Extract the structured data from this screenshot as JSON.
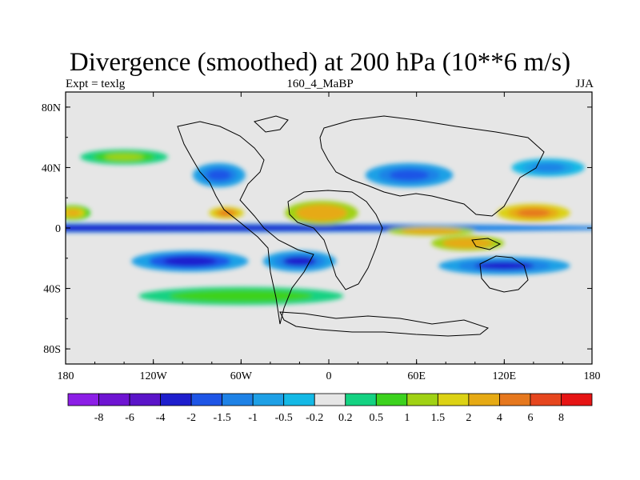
{
  "chart_data": {
    "type": "heatmap",
    "title": "Divergence (smoothed) at 200 hPa (10**6 m/s)",
    "subtitle_left": "Expt = texlg",
    "subtitle_center": "160_4_MaBP",
    "subtitle_right": "JJA",
    "xlim": [
      -180,
      180
    ],
    "ylim": [
      -90,
      90
    ],
    "x_ticks": [
      {
        "value": -180,
        "label": "180"
      },
      {
        "value": -120,
        "label": "120W"
      },
      {
        "value": -60,
        "label": "60W"
      },
      {
        "value": 0,
        "label": "0"
      },
      {
        "value": 60,
        "label": "60E"
      },
      {
        "value": 120,
        "label": "120E"
      },
      {
        "value": 180,
        "label": "180"
      }
    ],
    "y_ticks": [
      {
        "value": 80,
        "label": "80N"
      },
      {
        "value": 40,
        "label": "40N"
      },
      {
        "value": 0,
        "label": "0"
      },
      {
        "value": -40,
        "label": "40S"
      },
      {
        "value": -80,
        "label": "80S"
      }
    ],
    "colorbar": {
      "colors": [
        "#8c1ee6",
        "#6e14d2",
        "#5a14c8",
        "#1e1ecd",
        "#1e55e6",
        "#1e82e6",
        "#1ea0e6",
        "#14b9e6",
        "#e6e6e6",
        "#14d282",
        "#3cd21e",
        "#a0d214",
        "#dcd214",
        "#e6aa14",
        "#e6781e",
        "#e6461e",
        "#e61414"
      ],
      "labels": [
        "-8",
        "-6",
        "-4",
        "-2",
        "-1.5",
        "-1",
        "-0.5",
        "-0.2",
        "0.2",
        "0.5",
        "1",
        "1.5",
        "2",
        "4",
        "6",
        "8"
      ]
    },
    "features": [
      {
        "name": "eq-negative-band",
        "lon": -180,
        "lat": 0,
        "rlon": 400,
        "rlat": 3,
        "value": -3
      },
      {
        "name": "sh-subtropic-neg-1",
        "lon": -95,
        "lat": -22,
        "rlon": 40,
        "rlat": 7,
        "value": -2.5
      },
      {
        "name": "sh-subtropic-neg-2",
        "lon": -20,
        "lat": -22,
        "rlon": 25,
        "rlat": 7,
        "value": -2
      },
      {
        "name": "sh-subtropic-neg-3",
        "lon": 120,
        "lat": -25,
        "rlon": 45,
        "rlat": 6,
        "value": -2
      },
      {
        "name": "nh-neg-atlantic",
        "lon": -75,
        "lat": 35,
        "rlon": 18,
        "rlat": 8,
        "value": -1.8
      },
      {
        "name": "nh-neg-asia",
        "lon": 55,
        "lat": 35,
        "rlon": 30,
        "rlat": 8,
        "value": -1.5
      },
      {
        "name": "nh-neg-pacific",
        "lon": 150,
        "lat": 40,
        "rlon": 25,
        "rlat": 6,
        "value": -1.2
      },
      {
        "name": "pos-central-america",
        "lon": -70,
        "lat": 10,
        "rlon": 12,
        "rlat": 4,
        "value": 4.5
      },
      {
        "name": "pos-africa",
        "lon": -5,
        "lat": 10,
        "rlon": 25,
        "rlat": 8,
        "value": 3
      },
      {
        "name": "pos-indian-ocean",
        "lon": 70,
        "lat": -2,
        "rlon": 30,
        "rlat": 3,
        "value": 3
      },
      {
        "name": "pos-west-pacific",
        "lon": 140,
        "lat": 10,
        "rlon": 25,
        "rlat": 6,
        "value": 5
      },
      {
        "name": "pos-east-pacific",
        "lon": -175,
        "lat": 10,
        "rlon": 12,
        "rlat": 5,
        "value": 2.5
      },
      {
        "name": "pos-sh-indian",
        "lon": 95,
        "lat": -10,
        "rlon": 25,
        "rlat": 5,
        "value": 3
      },
      {
        "name": "pos-sh-band",
        "lon": -60,
        "lat": -45,
        "rlon": 70,
        "rlat": 6,
        "value": 1
      },
      {
        "name": "pos-nh-band",
        "lon": -140,
        "lat": 47,
        "rlon": 30,
        "rlat": 5,
        "value": 1.2
      }
    ]
  }
}
